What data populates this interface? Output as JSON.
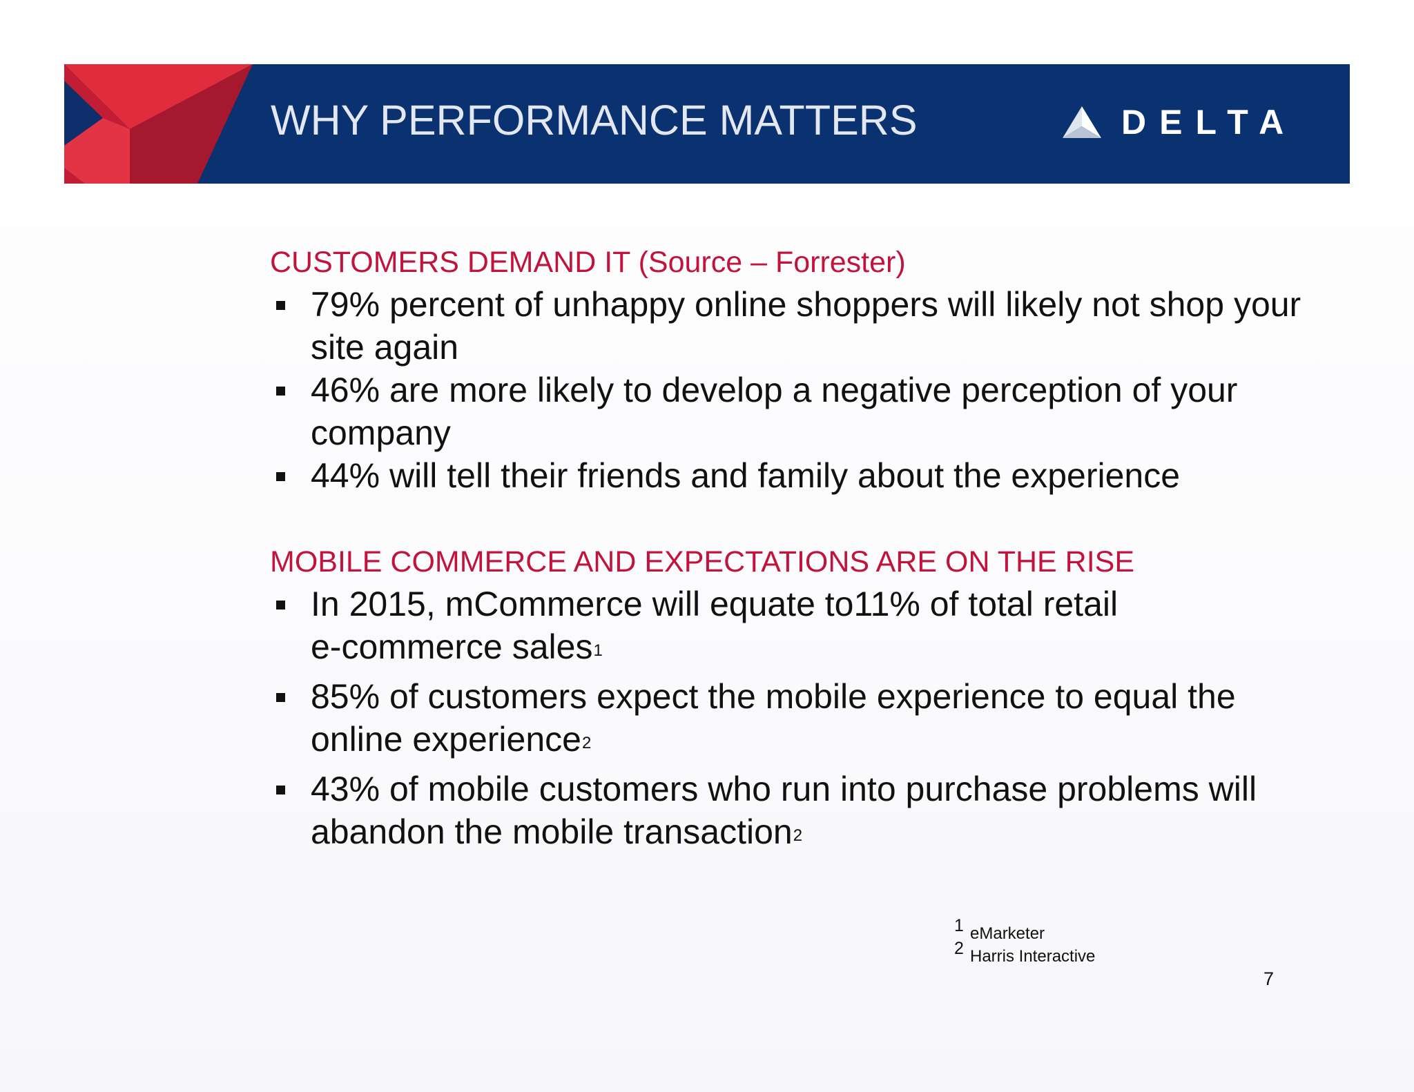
{
  "header": {
    "title": "WHY PERFORMANCE MATTERS",
    "brand_name": "DELTA",
    "band_color": "#0b3270",
    "widget_colors": [
      "#e02c3d",
      "#b01a31",
      "#7d1028"
    ]
  },
  "sections": [
    {
      "heading": "CUSTOMERS DEMAND IT (Source – Forrester)",
      "bullets": [
        {
          "text": "79% percent of unhappy online shoppers will likely not shop your site again"
        },
        {
          "text": "46% are more likely to develop a negative perception of your company"
        },
        {
          "text": "44% will tell their friends and family about the experience"
        }
      ]
    },
    {
      "heading": "MOBILE COMMERCE AND EXPECTATIONS ARE ON THE RISE",
      "bullets": [
        {
          "text": "In 2015, mCommerce will equate to11% of total retail",
          "text2": "e-commerce sales",
          "sup": "1"
        },
        {
          "text": "85% of customers expect the mobile experience to equal the online experience",
          "sup": "2"
        },
        {
          "text": "43% of mobile customers who run into purchase problems will abandon the mobile transaction",
          "sup": "2"
        }
      ]
    }
  ],
  "footnotes": [
    {
      "number": "1",
      "text": "eMarketer"
    },
    {
      "number": "2",
      "text": "Harris Interactive"
    }
  ],
  "page_number": "7",
  "colors": {
    "heading_red": "#c0143c",
    "body_text": "#111111",
    "title_text": "#e3e7ef"
  }
}
